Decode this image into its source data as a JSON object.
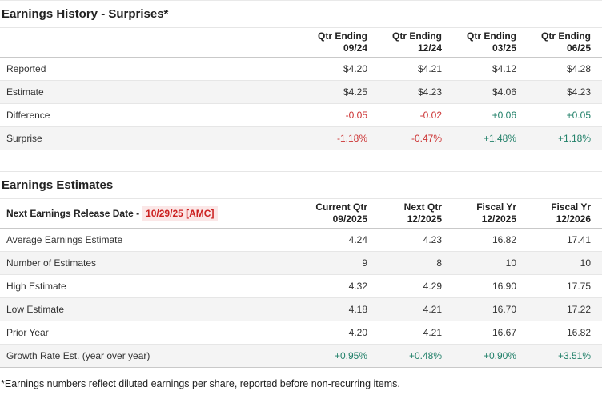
{
  "footnote": "*Earnings numbers reflect diluted earnings per share, reported before non-recurring items.",
  "colors": {
    "negative_text": "#cc3333",
    "positive_text": "#218069",
    "release_date_text": "#cc2222",
    "release_date_bg": "#fbe7e7",
    "row_alt_bg": "#f4f4f4",
    "header_border": "#c9c9c9"
  },
  "tables": {
    "history": {
      "title": "Earnings History - Surprises*",
      "columns": [
        {
          "top": "Qtr Ending",
          "bottom": "09/24"
        },
        {
          "top": "Qtr Ending",
          "bottom": "12/24"
        },
        {
          "top": "Qtr Ending",
          "bottom": "03/25"
        },
        {
          "top": "Qtr Ending",
          "bottom": "06/25"
        }
      ],
      "rows": [
        {
          "label": "Reported",
          "cells": [
            {
              "v": "$4.20"
            },
            {
              "v": "$4.21"
            },
            {
              "v": "$4.12"
            },
            {
              "v": "$4.28"
            }
          ]
        },
        {
          "label": "Estimate",
          "cells": [
            {
              "v": "$4.25"
            },
            {
              "v": "$4.23"
            },
            {
              "v": "$4.06"
            },
            {
              "v": "$4.23"
            }
          ]
        },
        {
          "label": "Difference",
          "cells": [
            {
              "v": "-0.05",
              "tone": "neg"
            },
            {
              "v": "-0.02",
              "tone": "neg"
            },
            {
              "v": "+0.06",
              "tone": "pos"
            },
            {
              "v": "+0.05",
              "tone": "pos"
            }
          ]
        },
        {
          "label": "Surprise",
          "cells": [
            {
              "v": "-1.18%",
              "tone": "neg"
            },
            {
              "v": "-0.47%",
              "tone": "neg"
            },
            {
              "v": "+1.48%",
              "tone": "pos"
            },
            {
              "v": "+1.18%",
              "tone": "pos"
            }
          ]
        }
      ]
    },
    "estimates": {
      "title": "Earnings Estimates",
      "corner": {
        "label": "Next Earnings Release Date -",
        "date": "10/29/25 [AMC]"
      },
      "columns": [
        {
          "top": "Current Qtr",
          "bottom": "09/2025"
        },
        {
          "top": "Next Qtr",
          "bottom": "12/2025"
        },
        {
          "top": "Fiscal Yr",
          "bottom": "12/2025"
        },
        {
          "top": "Fiscal Yr",
          "bottom": "12/2026"
        }
      ],
      "rows": [
        {
          "label": "Average Earnings Estimate",
          "cells": [
            {
              "v": "4.24"
            },
            {
              "v": "4.23"
            },
            {
              "v": "16.82"
            },
            {
              "v": "17.41"
            }
          ]
        },
        {
          "label": "Number of Estimates",
          "cells": [
            {
              "v": "9"
            },
            {
              "v": "8"
            },
            {
              "v": "10"
            },
            {
              "v": "10"
            }
          ]
        },
        {
          "label": "High Estimate",
          "cells": [
            {
              "v": "4.32"
            },
            {
              "v": "4.29"
            },
            {
              "v": "16.90"
            },
            {
              "v": "17.75"
            }
          ]
        },
        {
          "label": "Low Estimate",
          "cells": [
            {
              "v": "4.18"
            },
            {
              "v": "4.21"
            },
            {
              "v": "16.70"
            },
            {
              "v": "17.22"
            }
          ]
        },
        {
          "label": "Prior Year",
          "cells": [
            {
              "v": "4.20"
            },
            {
              "v": "4.21"
            },
            {
              "v": "16.67"
            },
            {
              "v": "16.82"
            }
          ]
        },
        {
          "label": "Growth Rate Est. (year over year)",
          "cells": [
            {
              "v": "+0.95%",
              "tone": "pos"
            },
            {
              "v": "+0.48%",
              "tone": "pos"
            },
            {
              "v": "+0.90%",
              "tone": "pos"
            },
            {
              "v": "+3.51%",
              "tone": "pos"
            }
          ]
        }
      ]
    }
  }
}
